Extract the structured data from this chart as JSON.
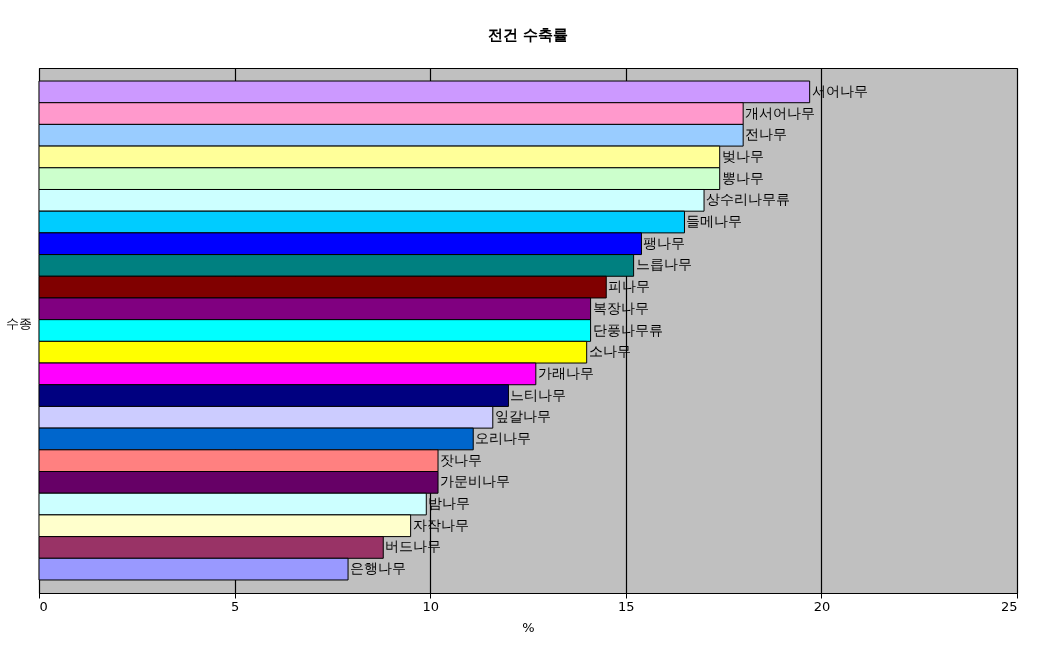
{
  "chart_data": {
    "type": "bar",
    "orientation": "horizontal",
    "title": "전건 수축률",
    "xlabel": "%",
    "ylabel": "수종",
    "categories": [
      "서어나무",
      "개서어나무",
      "전나무",
      "벚나무",
      "뽕나무",
      "상수리나무류",
      "들메나무",
      "팽나무",
      "느릅나무",
      "피나무",
      "복장나무",
      "단풍나무류",
      "소나무",
      "가래나무",
      "느티나무",
      "잎갈나무",
      "오리나무",
      "잣나무",
      "가문비나무",
      "밤나무",
      "자작나무",
      "버드나무",
      "은행나무"
    ],
    "values": [
      19.7,
      18.0,
      18.0,
      17.4,
      17.4,
      17.0,
      16.5,
      15.4,
      15.2,
      14.5,
      14.1,
      14.1,
      14.0,
      12.7,
      12.0,
      11.6,
      11.1,
      10.2,
      10.2,
      9.9,
      9.5,
      8.8,
      7.9
    ],
    "colors": [
      "#cc99ff",
      "#ff99cc",
      "#99ccff",
      "#ffff99",
      "#ccffcc",
      "#ccffff",
      "#00ccff",
      "#0000ff",
      "#008080",
      "#800000",
      "#800080",
      "#00ffff",
      "#ffff00",
      "#ff00ff",
      "#000080",
      "#ccccff",
      "#0066cc",
      "#ff8080",
      "#660066",
      "#ccffff",
      "#ffffcc",
      "#993366",
      "#9999ff"
    ],
    "xlim": [
      0,
      25
    ],
    "xticks": [
      0,
      5,
      10,
      15,
      20,
      25
    ],
    "grid": "x",
    "tick_labels": "x"
  }
}
